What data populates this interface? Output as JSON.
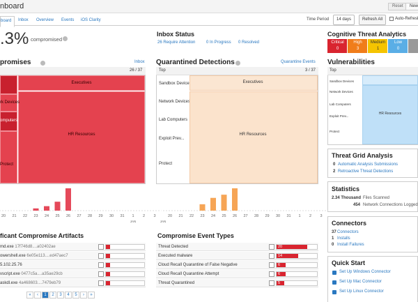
{
  "header": {
    "title": "nboard",
    "reset": "Reset",
    "new": "New"
  },
  "tabs": [
    "board",
    "Inbox",
    "Overview",
    "Events",
    "iOS Clarity"
  ],
  "toolbar": {
    "time_period_label": "Time Period",
    "time_period": "14 days",
    "refresh": "Refresh All",
    "auto_refresh": "Auto-Refresh"
  },
  "summary": {
    "percent": ".3%",
    "label": "compromised"
  },
  "inbox_status": {
    "title": "Inbox Status",
    "items": [
      "26 Require Attention",
      "0 In Progress",
      "0 Resolved"
    ]
  },
  "cta": {
    "title": "Cognitive Threat Analytics",
    "levels": [
      {
        "name": "Critical",
        "count": 0,
        "color": "#d9242f"
      },
      {
        "name": "High",
        "count": 3,
        "color": "#f07d1a"
      },
      {
        "name": "Medium",
        "count": 1,
        "color": "#f5c400"
      },
      {
        "name": "Low",
        "count": 0,
        "color": "#5aaee6"
      }
    ]
  },
  "compromises": {
    "title": "promises",
    "link": "Inbox",
    "count": "26 / 37",
    "treemap": [
      "Executives",
      "rk Devices",
      "omputers",
      "HR Resources",
      "Protect"
    ]
  },
  "compromises_chart": {
    "type": "bar",
    "categories": [
      "20",
      "21",
      "22",
      "23",
      "24",
      "25",
      "26",
      "27",
      "28",
      "29",
      "30",
      "31",
      "1",
      "2",
      "3"
    ],
    "values": [
      0,
      0,
      0,
      1,
      2,
      4,
      10,
      0,
      0,
      0,
      0,
      0,
      0,
      0,
      0
    ],
    "axis_label": "JAN",
    "color": "#e5495a"
  },
  "quarantined": {
    "title": "Quarantined Detections",
    "link": "Quarantine Events",
    "top": "Top",
    "count": "3 / 37",
    "rows": [
      "Sandbox Devices",
      "Network Devices",
      "Lab Computers",
      "Exploit Prev...",
      "Protect"
    ],
    "columns": [
      "Executives",
      "HR Resources"
    ]
  },
  "quarantined_chart": {
    "type": "bar",
    "categories": [
      "20",
      "21",
      "22",
      "23",
      "24",
      "25",
      "26",
      "27",
      "28",
      "29",
      "30",
      "31",
      "1",
      "2",
      "3"
    ],
    "values": [
      0,
      0,
      0,
      2,
      4,
      5,
      7,
      0,
      0,
      0,
      0,
      0,
      0,
      0,
      0
    ],
    "axis_label": "JAN",
    "color": "#f6a556"
  },
  "vulnerabilities": {
    "title": "Vulnerabilities",
    "top": "Top",
    "rows": [
      "Sandbox Devices",
      "Network Devices",
      "Lab Computers",
      "Exploit Prev...",
      "Protect"
    ],
    "main": "HR Resources"
  },
  "threat_grid": {
    "title": "Threat Grid Analysis",
    "items": [
      {
        "count": 0,
        "label": "Automatic Analysis Submissions"
      },
      {
        "count": 2,
        "label": "Retroactive Threat Detections"
      }
    ]
  },
  "statistics": {
    "title": "Statistics",
    "items": [
      {
        "count": "2.34 Thousand",
        "label": "Files Scanned"
      },
      {
        "count": 454,
        "label": "Network Connections Logged"
      }
    ]
  },
  "connectors": {
    "title": "Connectors",
    "items": [
      {
        "count": 37,
        "label": "Connectors"
      },
      {
        "count": 1,
        "label": "Installs"
      },
      {
        "count": 0,
        "label": "Install Failures"
      }
    ]
  },
  "quick_start": {
    "title": "Quick Start",
    "items": [
      "Set Up Windows Connector",
      "Set Up Mac Connector",
      "Set Up Linux Connector"
    ]
  },
  "artifacts": {
    "title": "ficant Compromise Artifacts",
    "rows": [
      {
        "name": "md.exe",
        "hash": "17f746d8....a02402ae"
      },
      {
        "name": "owershell.exe",
        "hash": "6e05e113....ed47aec7"
      },
      {
        "name": "5.102.25.76"
      },
      {
        "name": "vscript.exe",
        "hash": "0477c5a....a35ae29cb"
      },
      {
        "name": "askdl.exe",
        "hash": "4a468603....7479eb79"
      }
    ]
  },
  "pagination": [
    "«",
    "‹",
    "1",
    "2",
    "3",
    "4",
    "5",
    "›",
    "»"
  ],
  "event_types": {
    "title": "Compromise Event Types",
    "rows": [
      {
        "label": "Threat Detected",
        "value": 20
      },
      {
        "label": "Executed malware",
        "value": 14
      },
      {
        "label": "Cloud Recall Quarantine of False Negative",
        "value": 6
      },
      {
        "label": "Cloud Recall Quarantine Attempt",
        "value": 6
      },
      {
        "label": "Threat Quarantined",
        "value": 5
      }
    ]
  }
}
